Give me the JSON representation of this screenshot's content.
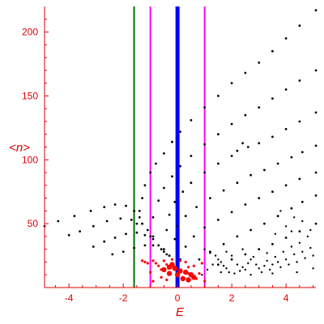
{
  "chart_data": {
    "type": "scatter",
    "title": "",
    "xlabel": "E",
    "ylabel": "<n>",
    "xlim": [
      -4.9,
      5.1
    ],
    "ylim": [
      0,
      220
    ],
    "x_ticks": [
      -4,
      -2,
      0,
      2,
      4
    ],
    "y_ticks": [
      50,
      100,
      150,
      200
    ],
    "grid": false,
    "legend": "none",
    "colors": {
      "axes": "#e00000",
      "points": "#000000",
      "highlight": "#ff0000",
      "line_blue": "#0000ff",
      "line_green": "#007000",
      "line_magenta": "#ff00ff"
    },
    "vertical_lines": [
      {
        "x": -1.6,
        "color": "#007000",
        "width": 2
      },
      {
        "x": -1.0,
        "color": "#ff00ff",
        "width": 2
      },
      {
        "x": 0.0,
        "color": "#0000ff",
        "width": 5
      },
      {
        "x": 1.0,
        "color": "#ff00ff",
        "width": 2
      }
    ],
    "series": [
      {
        "color": "#000000",
        "size": 1.4,
        "points": [
          [
            -4.9,
            48
          ],
          [
            -4.4,
            52
          ],
          [
            -3.8,
            56
          ],
          [
            -3.2,
            60
          ],
          [
            -2.7,
            63
          ],
          [
            -2.3,
            65
          ],
          [
            -1.9,
            64
          ],
          [
            -1.6,
            60
          ],
          [
            -1.4,
            55
          ],
          [
            -1.3,
            50
          ]
        ]
      },
      {
        "color": "#000000",
        "size": 1.4,
        "points": [
          [
            -4.0,
            41
          ],
          [
            -3.6,
            44
          ],
          [
            -3.1,
            48
          ],
          [
            -2.6,
            52
          ],
          [
            -2.1,
            54
          ],
          [
            -1.7,
            53
          ],
          [
            -1.3,
            50
          ],
          [
            -1.1,
            45
          ],
          [
            -0.9,
            40
          ]
        ]
      },
      {
        "color": "#000000",
        "size": 1.4,
        "points": [
          [
            -3.1,
            32
          ],
          [
            -2.7,
            36
          ],
          [
            -2.3,
            39
          ],
          [
            -1.9,
            42
          ],
          [
            -1.5,
            43
          ],
          [
            -1.2,
            41
          ],
          [
            -0.9,
            38
          ],
          [
            -0.7,
            33
          ],
          [
            -0.5,
            28
          ]
        ]
      },
      {
        "color": "#000000",
        "size": 1.4,
        "points": [
          [
            -2.4,
            26
          ],
          [
            -2.0,
            28
          ],
          [
            -1.6,
            31
          ],
          [
            -1.2,
            33
          ],
          [
            -0.9,
            33
          ],
          [
            -0.6,
            30
          ],
          [
            -0.4,
            26
          ]
        ]
      },
      {
        "color": "#000000",
        "size": 1.4,
        "points": [
          [
            -1.5,
            50
          ],
          [
            -1.4,
            60
          ],
          [
            -1.3,
            70
          ],
          [
            -1.2,
            80
          ],
          [
            -1.0,
            90
          ],
          [
            -0.8,
            97
          ],
          [
            -0.5,
            105
          ],
          [
            -0.2,
            114
          ],
          [
            0.1,
            122
          ],
          [
            0.5,
            131
          ],
          [
            1.0,
            141
          ],
          [
            1.5,
            150
          ],
          [
            2.0,
            160
          ],
          [
            2.5,
            168
          ],
          [
            3.0,
            176
          ],
          [
            3.5,
            185
          ],
          [
            4.0,
            195
          ],
          [
            4.5,
            205
          ],
          [
            5.1,
            217
          ]
        ]
      },
      {
        "color": "#000000",
        "size": 1.4,
        "points": [
          [
            -1.0,
            40
          ],
          [
            -0.9,
            55
          ],
          [
            -0.7,
            68
          ],
          [
            -0.5,
            78
          ],
          [
            -0.2,
            87
          ],
          [
            0.1,
            95
          ],
          [
            0.5,
            103
          ],
          [
            1.0,
            112
          ],
          [
            1.5,
            120
          ],
          [
            2.0,
            128
          ],
          [
            2.5,
            135
          ],
          [
            3.0,
            141
          ],
          [
            3.5,
            148
          ],
          [
            4.0,
            155
          ],
          [
            4.5,
            162
          ],
          [
            5.1,
            170
          ]
        ]
      },
      {
        "color": "#000000",
        "size": 1.4,
        "points": [
          [
            -0.5,
            30
          ],
          [
            -0.4,
            45
          ],
          [
            -0.3,
            57
          ],
          [
            -0.1,
            67
          ],
          [
            0.2,
            75
          ],
          [
            0.5,
            82
          ],
          [
            1.0,
            90
          ],
          [
            1.5,
            97
          ],
          [
            2.0,
            103
          ],
          [
            2.2,
            107
          ],
          [
            2.4,
            113
          ],
          [
            2.6,
            110
          ],
          [
            3.0,
            113
          ],
          [
            3.5,
            118
          ],
          [
            4.0,
            124
          ],
          [
            4.5,
            130
          ],
          [
            5.1,
            137
          ]
        ]
      },
      {
        "color": "#000000",
        "size": 1.4,
        "points": [
          [
            -0.3,
            25
          ],
          [
            -0.1,
            38
          ],
          [
            0.0,
            48
          ],
          [
            0.3,
            56
          ],
          [
            0.7,
            63
          ],
          [
            1.2,
            70
          ],
          [
            1.7,
            76
          ],
          [
            2.2,
            82
          ],
          [
            2.7,
            88
          ],
          [
            3.2,
            92
          ],
          [
            3.7,
            97
          ],
          [
            4.2,
            102
          ],
          [
            4.6,
            106
          ],
          [
            5.1,
            111
          ]
        ]
      },
      {
        "color": "#000000",
        "size": 1.4,
        "points": [
          [
            0.1,
            22
          ],
          [
            0.3,
            32
          ],
          [
            0.6,
            40
          ],
          [
            1.0,
            47
          ],
          [
            1.5,
            53
          ],
          [
            2.0,
            59
          ],
          [
            2.5,
            65
          ],
          [
            3.0,
            70
          ],
          [
            3.5,
            75
          ],
          [
            4.0,
            80
          ],
          [
            4.5,
            85
          ],
          [
            5.1,
            90
          ]
        ]
      },
      {
        "color": "#000000",
        "size": 1.4,
        "points": [
          [
            0.8,
            22
          ],
          [
            1.2,
            28
          ],
          [
            1.7,
            34
          ],
          [
            2.2,
            40
          ],
          [
            2.7,
            45
          ],
          [
            3.2,
            50
          ],
          [
            3.7,
            56
          ],
          [
            4.2,
            62
          ],
          [
            4.6,
            67
          ],
          [
            5.1,
            72
          ]
        ]
      },
      {
        "color": "#000000",
        "size": 1.4,
        "points": [
          [
            1.5,
            18
          ],
          [
            2.0,
            22
          ],
          [
            2.5,
            26
          ],
          [
            3.0,
            30
          ],
          [
            3.5,
            34
          ],
          [
            4.0,
            39
          ],
          [
            4.5,
            44
          ],
          [
            5.1,
            50
          ]
        ]
      },
      {
        "color": "#000000",
        "size": 1.2,
        "points": [
          [
            1.0,
            30
          ],
          [
            1.2,
            27
          ],
          [
            1.4,
            25
          ],
          [
            1.5,
            22
          ],
          [
            1.6,
            20
          ],
          [
            1.7,
            17
          ],
          [
            1.8,
            15
          ],
          [
            1.9,
            12
          ],
          [
            2.1,
            11
          ],
          [
            2.3,
            13
          ],
          [
            2.4,
            16
          ],
          [
            2.6,
            19
          ],
          [
            2.7,
            22
          ],
          [
            2.8,
            24
          ],
          [
            2.9,
            18
          ],
          [
            3.0,
            15
          ],
          [
            3.1,
            12
          ],
          [
            3.2,
            17
          ],
          [
            3.3,
            21
          ],
          [
            3.4,
            14
          ],
          [
            3.5,
            18
          ],
          [
            3.6,
            24
          ],
          [
            3.7,
            20
          ],
          [
            3.8,
            16
          ],
          [
            3.9,
            28
          ],
          [
            4.0,
            22
          ],
          [
            4.1,
            18
          ],
          [
            4.2,
            32
          ],
          [
            4.3,
            26
          ],
          [
            4.4,
            20
          ],
          [
            4.5,
            35
          ],
          [
            4.6,
            28
          ],
          [
            4.7,
            23
          ],
          [
            4.8,
            40
          ],
          [
            4.9,
            31
          ],
          [
            5.0,
            25
          ],
          [
            4.9,
            45
          ],
          [
            4.6,
            52
          ],
          [
            4.3,
            55
          ],
          [
            4.0,
            48
          ],
          [
            3.6,
            42
          ],
          [
            3.8,
            60
          ],
          [
            4.2,
            44
          ],
          [
            2.2,
            18
          ],
          [
            2.5,
            14
          ],
          [
            2.0,
            25
          ],
          [
            1.8,
            28
          ],
          [
            2.4,
            30
          ],
          [
            3.3,
            27
          ],
          [
            1.3,
            18
          ],
          [
            1.1,
            14
          ],
          [
            0.9,
            10
          ],
          [
            1.6,
            12
          ],
          [
            2.7,
            10
          ],
          [
            3.5,
            11
          ],
          [
            4.4,
            12
          ],
          [
            5.0,
            15
          ]
        ]
      },
      {
        "color": "#ff0000",
        "size": 1.6,
        "points": [
          [
            -1.3,
            21
          ],
          [
            -1.2,
            20
          ],
          [
            -1.1,
            19
          ],
          [
            -0.9,
            21
          ],
          [
            -0.8,
            19
          ],
          [
            -0.7,
            17
          ],
          [
            -0.6,
            14
          ],
          [
            -0.5,
            21
          ],
          [
            -0.4,
            18
          ],
          [
            -0.2,
            22
          ],
          [
            0.1,
            21
          ],
          [
            0.3,
            20
          ],
          [
            0.4,
            16
          ],
          [
            0.6,
            17
          ],
          [
            0.9,
            19
          ],
          [
            -0.6,
            8
          ],
          [
            -0.4,
            6
          ],
          [
            0.4,
            11
          ],
          [
            0.7,
            7
          ],
          [
            0.8,
            11
          ],
          [
            -1.0,
            12
          ],
          [
            1.0,
            5
          ],
          [
            -0.9,
            5
          ]
        ]
      },
      {
        "color": "#ff0000",
        "size": 3.2,
        "points": [
          [
            -0.5,
            14
          ],
          [
            -0.3,
            16
          ],
          [
            -0.1,
            15
          ],
          [
            0.1,
            13
          ],
          [
            0.3,
            12
          ],
          [
            0.5,
            10
          ],
          [
            0.6,
            8
          ],
          [
            -0.3,
            11
          ],
          [
            0.0,
            10
          ],
          [
            0.2,
            7
          ],
          [
            0.4,
            6
          ],
          [
            -0.2,
            18
          ]
        ]
      }
    ]
  }
}
